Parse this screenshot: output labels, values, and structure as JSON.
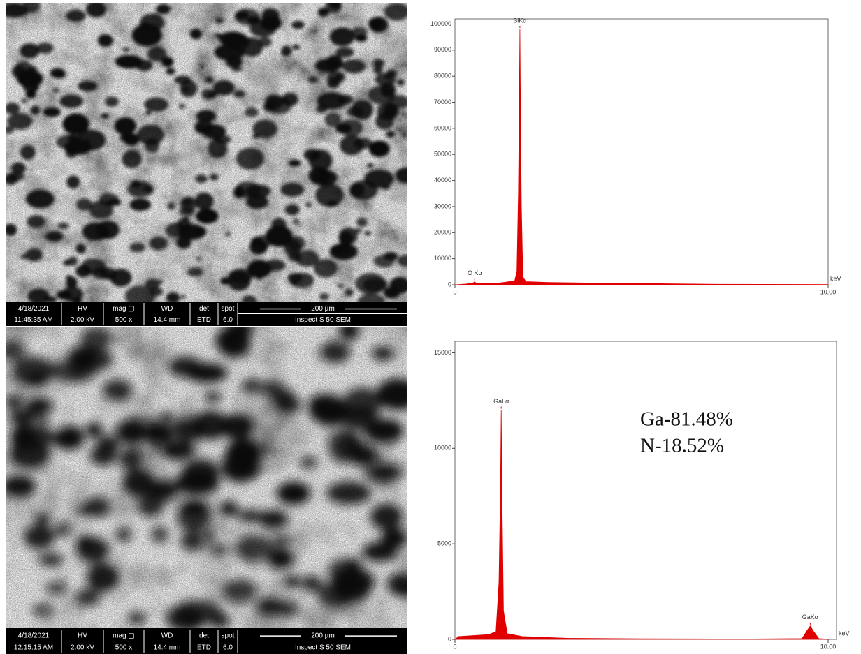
{
  "sem_panels": [
    {
      "date": "4/18/2021",
      "time": "11:45:35 AM",
      "hv_label": "HV",
      "hv": "2.00 kV",
      "mag_label": "mag ▢",
      "mag": "500 x",
      "wd_label": "WD",
      "wd": "14.4 mm",
      "det_label": "det",
      "det": "ETD",
      "spot_label": "spot",
      "spot": "6.0",
      "scale": "200 µm",
      "instrument": "Inspect S 50 SEM"
    },
    {
      "date": "4/18/2021",
      "time": "12:15:15 AM",
      "hv_label": "HV",
      "hv": "2.00 kV",
      "mag_label": "mag ▢",
      "mag": "500 x",
      "wd_label": "WD",
      "wd": "14.4 mm",
      "det_label": "det",
      "det": "ETD",
      "spot_label": "spot",
      "spot": "6.0",
      "scale": "200 µm",
      "instrument": "Inspect S 50 SEM"
    }
  ],
  "chart_data": [
    {
      "type": "area",
      "x": [
        0,
        0.3,
        0.5,
        0.53,
        0.56,
        0.8,
        1.2,
        1.6,
        1.66,
        1.7,
        1.72,
        1.74,
        1.76,
        1.78,
        1.82,
        1.9,
        2.5,
        3.5,
        5,
        7,
        10
      ],
      "values": [
        0,
        300,
        800,
        1200,
        700,
        600,
        700,
        1500,
        5000,
        35000,
        63000,
        98000,
        60000,
        30000,
        3000,
        1200,
        900,
        700,
        500,
        200,
        100
      ],
      "color": "#e00000",
      "xlim": [
        0,
        10
      ],
      "ylim": [
        0,
        102000
      ],
      "xticks": [
        0,
        {
          "value": 10,
          "label": "10.00"
        }
      ],
      "yticks": [
        0,
        10000,
        20000,
        30000,
        40000,
        50000,
        60000,
        70000,
        80000,
        90000,
        100000
      ],
      "x_label": "keV",
      "peak_labels": [
        {
          "text": "O Kα",
          "x": 0.53
        },
        {
          "text": "SiKα",
          "x": 1.74
        }
      ]
    },
    {
      "type": "area",
      "x": [
        0,
        0.1,
        0.5,
        0.9,
        1.1,
        1.18,
        1.22,
        1.24,
        1.26,
        1.3,
        1.4,
        1.8,
        3,
        5,
        8,
        9.3,
        9.45,
        9.52,
        9.6,
        9.75,
        10
      ],
      "values": [
        0,
        150,
        200,
        250,
        400,
        3000,
        8000,
        12000,
        7500,
        1500,
        300,
        150,
        60,
        30,
        20,
        40,
        500,
        700,
        450,
        40,
        10
      ],
      "color": "#e00000",
      "xlim": [
        0,
        10
      ],
      "ylim": [
        0,
        15600
      ],
      "xticks": [
        0,
        {
          "value": 10,
          "label": "10.00"
        }
      ],
      "yticks": [
        0,
        5000,
        10000,
        15000
      ],
      "x_label": "keV",
      "peak_labels": [
        {
          "text": "GaLα",
          "x": 1.24
        },
        {
          "text": "GaKα",
          "x": 9.52
        }
      ],
      "notes": [
        "Ga-81.48%",
        "N-18.52%"
      ]
    }
  ]
}
